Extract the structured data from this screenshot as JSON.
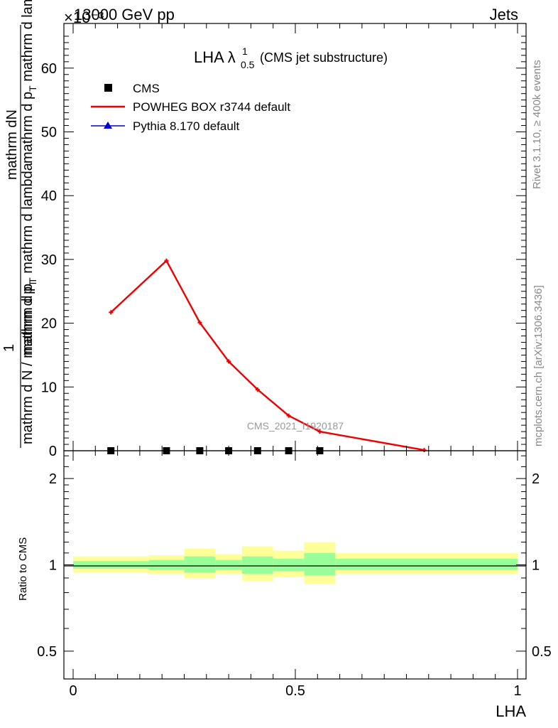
{
  "header": {
    "energy_label": "13000 GeV pp",
    "process_label": "Jets",
    "exponent_label": "×10⁻³"
  },
  "side_labels": {
    "rivet": "Rivet 3.1.10, ≥ 400k events",
    "mcplots": "mcplots.cern.ch [arXiv:1306.3436]"
  },
  "watermark": "CMS_2021_I1920187",
  "plot_title": {
    "main": "LHA λ",
    "sup": "1",
    "sub": "0.5",
    "suffix": "(CMS jet substructure)"
  },
  "y_axis_main": {
    "numerator": "mathrm dN",
    "lower": "mathrm d N / mathrm d p",
    "lower_sub": "T",
    "lower2": " mathrm d lambda",
    "mid": "mathrm d p",
    "mid_sub": "T",
    "mid2": "mathrm d p",
    "mid2_sub": "T",
    "mid3": " mathrm d lambda",
    "one": "1",
    "full_numerator": "mathrm dN",
    "full_denominator_a": "mathrm d p",
    "full_denominator_b": " mathrm d lambda"
  },
  "ylabel_ratio": "Ratio to CMS",
  "xlabel": "LHA",
  "legend": [
    {
      "label": "CMS",
      "color": "#000000",
      "marker": "square"
    },
    {
      "label": "POWHEG BOX r3744 default",
      "color": "#ee0000",
      "marker": "line"
    },
    {
      "label": "Pythia 8.170 default",
      "color": "#0000cc",
      "marker": "triangle"
    }
  ],
  "chart_data": [
    {
      "type": "line",
      "panel": "main",
      "xlim": [
        0,
        1
      ],
      "ylim": [
        0,
        67
      ],
      "y_scale_factor": "10^-3",
      "yticks": [
        0,
        10,
        20,
        30,
        40,
        50,
        60
      ],
      "series": [
        {
          "name": "CMS",
          "marker": "square",
          "color": "#000000",
          "x": [
            0.085,
            0.21,
            0.285,
            0.35,
            0.415,
            0.485,
            0.555
          ],
          "y": [
            0,
            0,
            0,
            0,
            0,
            0,
            0
          ]
        },
        {
          "name": "POWHEG BOX r3744 default",
          "color": "#ee0000",
          "x": [
            0.085,
            0.21,
            0.285,
            0.35,
            0.415,
            0.485,
            0.555,
            0.79
          ],
          "y": [
            21.7,
            29.8,
            20.1,
            14.0,
            9.6,
            5.5,
            3.0,
            0.1
          ]
        },
        {
          "name": "Pythia 8.170 default",
          "color": "#0000cc",
          "x": [],
          "y": []
        }
      ]
    },
    {
      "type": "area",
      "panel": "ratio",
      "xlim": [
        0,
        1
      ],
      "ylim": [
        0.4,
        2.5
      ],
      "y_scale": "log",
      "yticks": [
        0.5,
        1,
        2
      ],
      "ytick_labels": [
        "0.5",
        "1",
        "2"
      ],
      "xticks": [
        0,
        0.5,
        1
      ],
      "xtick_labels": [
        "0",
        "0.5",
        "1"
      ],
      "bins": [
        0,
        0.17,
        0.25,
        0.32,
        0.38,
        0.45,
        0.52,
        0.59,
        1.0
      ],
      "band_yellow_lo": [
        0.94,
        0.93,
        0.9,
        0.93,
        0.88,
        0.91,
        0.86,
        0.93
      ],
      "band_yellow_hi": [
        1.07,
        1.08,
        1.14,
        1.09,
        1.16,
        1.12,
        1.2,
        1.1
      ],
      "band_green_lo": [
        0.97,
        0.96,
        0.94,
        0.96,
        0.93,
        0.95,
        0.92,
        0.96
      ],
      "band_green_hi": [
        1.03,
        1.04,
        1.07,
        1.04,
        1.07,
        1.05,
        1.1,
        1.05
      ],
      "reference": 1
    }
  ]
}
